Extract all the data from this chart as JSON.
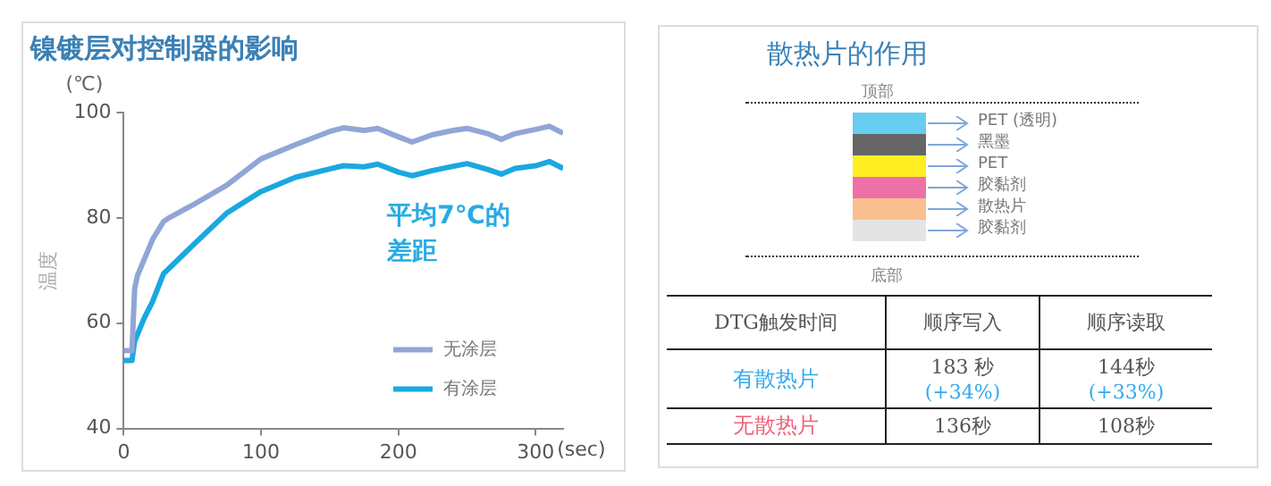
{
  "chart_data": [
    {
      "type": "line",
      "title": "镍镀层对控制器的影响",
      "xlabel": "(sec)",
      "ylabel": "温度",
      "annotations": [
        "(℃)",
        "平均7℃的差距"
      ],
      "xlim": [
        0,
        320
      ],
      "xticks": [
        0,
        100,
        200,
        300
      ],
      "ylim": [
        40,
        100
      ],
      "yticks": [
        40,
        60,
        80,
        100
      ],
      "grid": false,
      "legend": "bottom right",
      "marker": "none",
      "line_style": "solid",
      "series": [
        {
          "name": "无涂层",
          "color": "#91a6d6",
          "x": [
            0,
            6,
            8,
            10,
            21,
            29,
            33,
            50,
            75,
            100,
            125,
            150,
            160,
            175,
            185,
            200,
            210,
            225,
            240,
            250,
            265,
            275,
            285,
            300,
            310,
            320
          ],
          "values": [
            54.8,
            54.8,
            66.6,
            69,
            75.9,
            79.3,
            80,
            82.4,
            86.2,
            91.2,
            93.9,
            96.4,
            97.1,
            96.6,
            97,
            95.4,
            94.4,
            95.8,
            96.6,
            97,
            96,
            94.9,
            96,
            96.8,
            97.4,
            96.1
          ]
        },
        {
          "name": "有涂层",
          "color": "#1ba8e0",
          "x": [
            0,
            6,
            8,
            15,
            21,
            29,
            35,
            50,
            75,
            100,
            125,
            150,
            160,
            175,
            185,
            200,
            210,
            225,
            240,
            250,
            265,
            275,
            285,
            300,
            310,
            320
          ],
          "values": [
            52.9,
            52.9,
            56.6,
            61,
            64.1,
            69.4,
            70.9,
            74.7,
            80.9,
            85,
            87.7,
            89.3,
            89.9,
            89.7,
            90.2,
            88.7,
            88,
            89,
            89.8,
            90.3,
            89.2,
            88.3,
            89.4,
            89.9,
            90.7,
            89.4
          ]
        }
      ]
    },
    {
      "type": "other",
      "title": "散热片的作用",
      "annotations": [
        "顶部",
        "PET (透明)",
        "黑墨",
        "PET",
        "胶黏剂",
        "散热片",
        "胶黏剂",
        "底部",
        "DTG触发时间",
        "顺序写入",
        "顺序读取",
        "有散热片",
        "183 秒",
        "(+34%)",
        "144秒",
        "(+33%)",
        "无散热片",
        "136秒",
        "108秒"
      ]
    }
  ]
}
